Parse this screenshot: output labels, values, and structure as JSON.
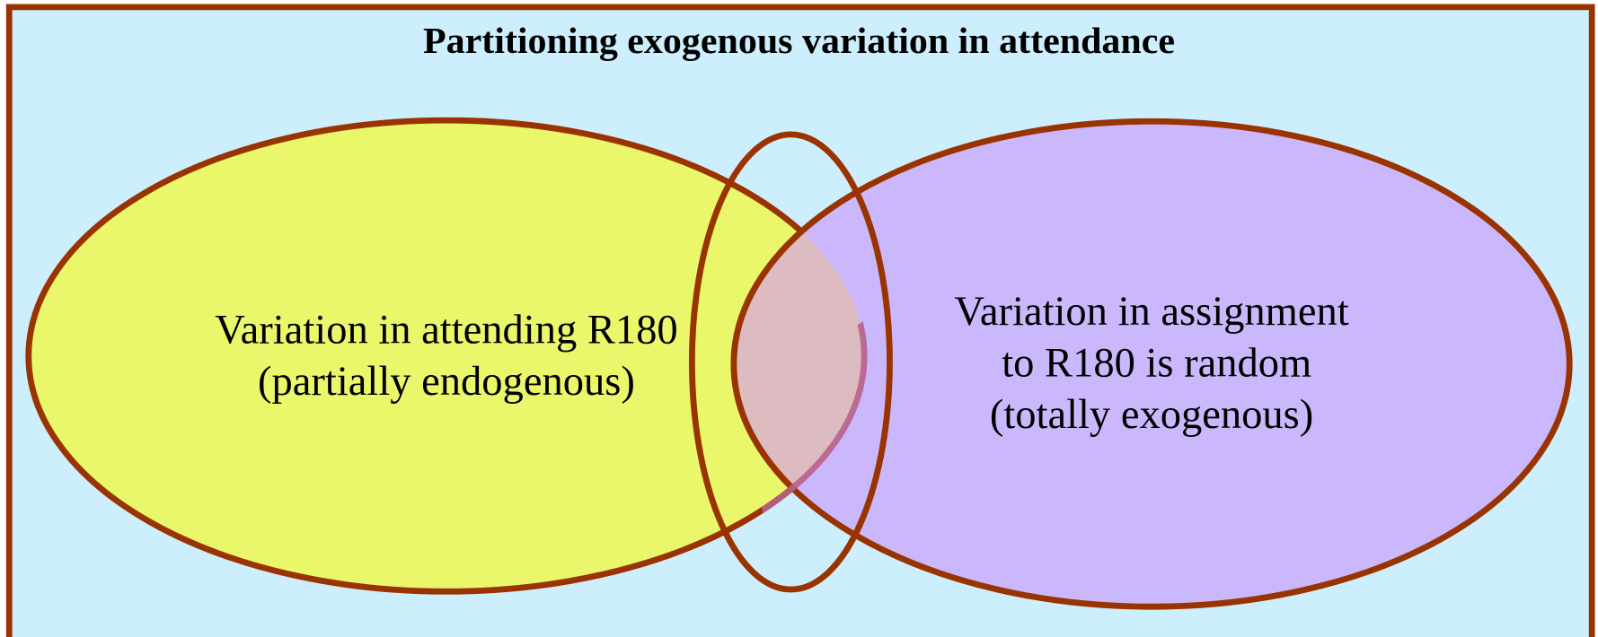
{
  "title": "Partitioning exogenous variation in attendance",
  "left_set": {
    "lines": [
      "Variation in attending R180",
      "(partially endogenous)"
    ]
  },
  "right_set": {
    "lines": [
      "Variation in assignment",
      "to R180 is random",
      "(totally exogenous)"
    ]
  }
}
